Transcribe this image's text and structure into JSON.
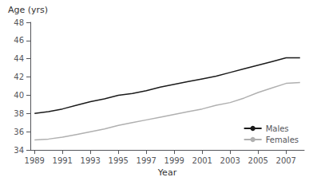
{
  "chart_data": {
    "type": "line",
    "x": [
      1989,
      1990,
      1991,
      1992,
      1993,
      1994,
      1995,
      1996,
      1997,
      1998,
      1999,
      2000,
      2001,
      2002,
      2003,
      2004,
      2005,
      2006,
      2007,
      2008
    ],
    "series": [
      {
        "name": "Males",
        "color": "#1a1a1a",
        "values": [
          38.0,
          38.2,
          38.5,
          38.9,
          39.3,
          39.6,
          40.0,
          40.2,
          40.5,
          40.9,
          41.2,
          41.5,
          41.8,
          42.1,
          42.5,
          42.9,
          43.3,
          43.7,
          44.1,
          44.1
        ]
      },
      {
        "name": "Females",
        "color": "#b0b0b0",
        "values": [
          35.1,
          35.2,
          35.4,
          35.7,
          36.0,
          36.3,
          36.7,
          37.0,
          37.3,
          37.6,
          37.9,
          38.2,
          38.5,
          38.9,
          39.2,
          39.7,
          40.3,
          40.8,
          41.3,
          41.4
        ]
      }
    ],
    "xlabel": "Year",
    "ylabel": "Age (yrs)",
    "xlim": [
      1988.7,
      2008.3
    ],
    "xticks": [
      1989,
      1991,
      1993,
      1995,
      1997,
      1999,
      2001,
      2003,
      2005,
      2007
    ],
    "ylim": [
      34,
      48
    ],
    "yticks": [
      34,
      36,
      38,
      40,
      42,
      44,
      46,
      48
    ],
    "grid": false,
    "legend": "lower right"
  }
}
